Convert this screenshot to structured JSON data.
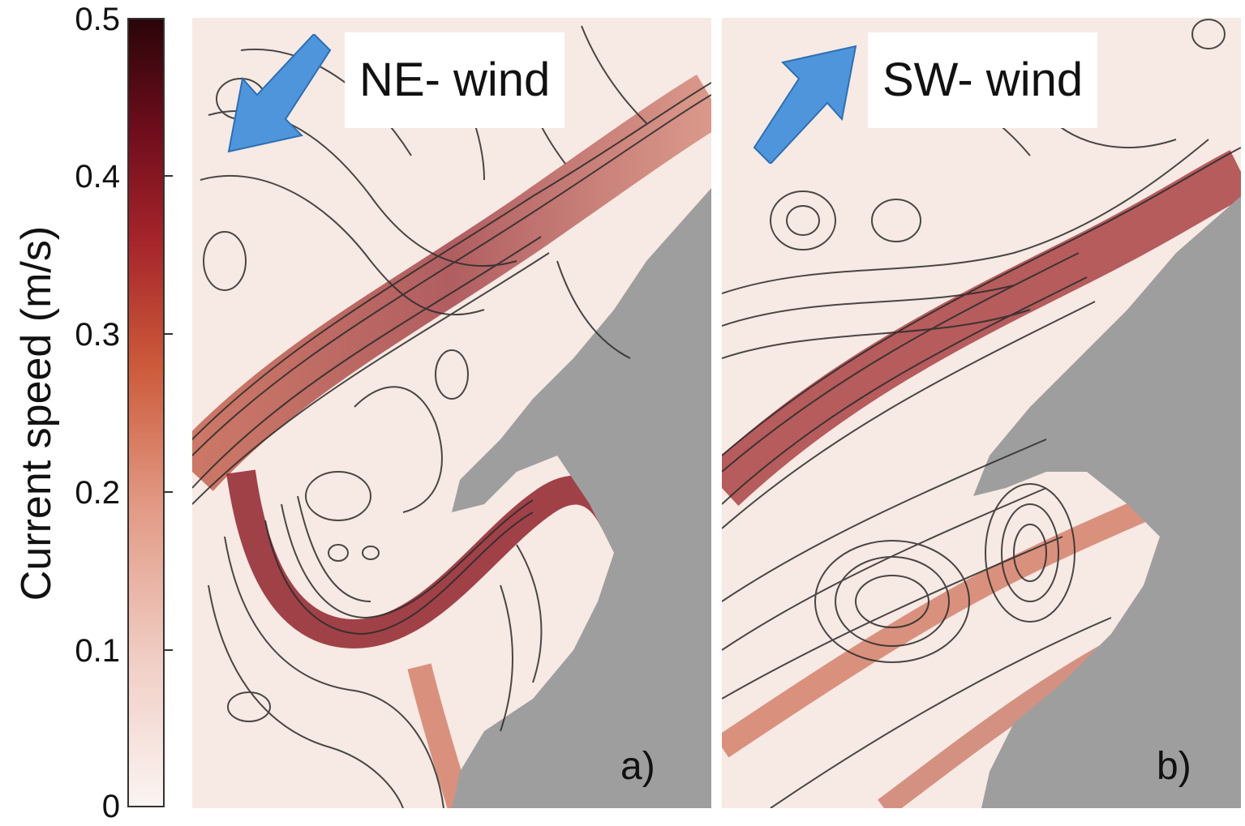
{
  "colorbar": {
    "label": "Current speed (m/s)",
    "ticks": [
      "0.5",
      "0.4",
      "0.3",
      "0.2",
      "0.1",
      "0"
    ],
    "min": 0,
    "max": 0.5,
    "low_color": "#fbf4f2",
    "high_color": "#2a0509"
  },
  "panels": [
    {
      "label": "a)",
      "wind": "NE- wind",
      "arrow_direction": "southwest"
    },
    {
      "label": "b)",
      "wind": "SW- wind",
      "arrow_direction": "northeast"
    }
  ],
  "colors": {
    "land": "#9e9e9e",
    "arrow": "#4f95db",
    "streamline": "#2b2b2b"
  }
}
